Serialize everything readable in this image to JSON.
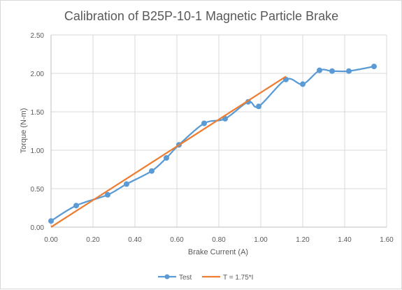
{
  "chart_data": {
    "type": "line",
    "title": "Calibration of B25P-10-1 Magnetic Particle Brake",
    "xlabel": "Brake Current (A)",
    "ylabel": "Torque (N-m)",
    "xlim": [
      0,
      1.6
    ],
    "ylim": [
      0,
      2.5
    ],
    "x_ticks": [
      "0.00",
      "0.20",
      "0.40",
      "0.60",
      "0.80",
      "1.00",
      "1.20",
      "1.40",
      "1.60"
    ],
    "y_ticks": [
      "0.00",
      "0.50",
      "1.00",
      "1.50",
      "2.00",
      "2.50"
    ],
    "grid": "vertical and horizontal",
    "legend_position": "bottom",
    "series": [
      {
        "name": "Test",
        "color": "#5b9bd5",
        "style": "smoothed line with circle markers",
        "points": [
          {
            "x": 0.0,
            "y": 0.08
          },
          {
            "x": 0.12,
            "y": 0.28
          },
          {
            "x": 0.27,
            "y": 0.42
          },
          {
            "x": 0.36,
            "y": 0.56
          },
          {
            "x": 0.48,
            "y": 0.73
          },
          {
            "x": 0.55,
            "y": 0.9
          },
          {
            "x": 0.61,
            "y": 1.07
          },
          {
            "x": 0.73,
            "y": 1.35
          },
          {
            "x": 0.83,
            "y": 1.41
          },
          {
            "x": 0.94,
            "y": 1.63
          },
          {
            "x": 0.99,
            "y": 1.57
          },
          {
            "x": 1.12,
            "y": 1.92
          },
          {
            "x": 1.2,
            "y": 1.86
          },
          {
            "x": 1.28,
            "y": 2.04
          },
          {
            "x": 1.34,
            "y": 2.03
          },
          {
            "x": 1.42,
            "y": 2.03
          },
          {
            "x": 1.54,
            "y": 2.09
          }
        ]
      },
      {
        "name": "T = 1.75*I",
        "color": "#ed7d31",
        "style": "straight line",
        "points": [
          {
            "x": 0.0,
            "y": 0.0
          },
          {
            "x": 1.12,
            "y": 1.96
          }
        ]
      }
    ]
  }
}
